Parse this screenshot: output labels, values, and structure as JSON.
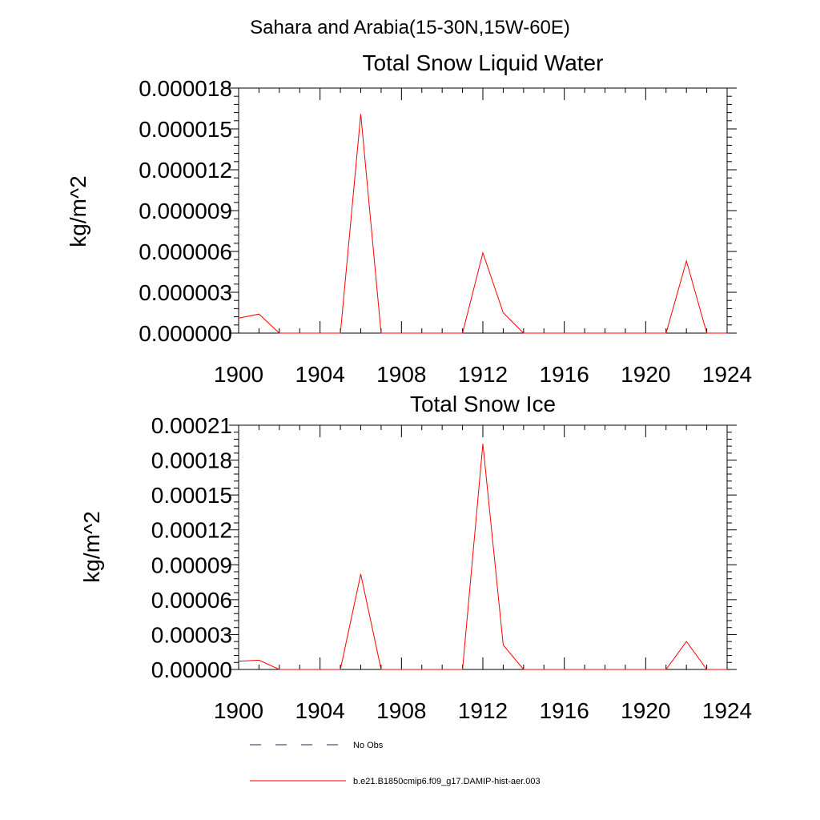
{
  "figure": {
    "title": "Sahara and Arabia(15-30N,15W-60E)"
  },
  "colors": {
    "obs_line": "#1c2a6b",
    "model_line": "#ff0000",
    "axes": "#000000"
  },
  "legend": {
    "position": "bottom-left",
    "items": [
      {
        "label": "No Obs",
        "style": "dashed",
        "color": "#1c2a6b"
      },
      {
        "label": "b.e21.B1850cmip6.f09_g17.DAMIP-hist-aer.003",
        "style": "solid",
        "color": "#ff0000"
      }
    ]
  },
  "chart_data": [
    {
      "type": "line",
      "title": "Total Snow Liquid Water",
      "xlabel": "",
      "ylabel": "kg/m^2",
      "xlim": [
        1900,
        1924
      ],
      "ylim": [
        0,
        1.8e-05
      ],
      "xticks": [
        1900,
        1904,
        1908,
        1912,
        1916,
        1920,
        1924
      ],
      "xtick_labels": [
        "1900",
        "1904",
        "1908",
        "1912",
        "1916",
        "1920",
        "1924"
      ],
      "yticks": [
        0,
        3e-06,
        6e-06,
        9e-06,
        1.2e-05,
        1.5e-05,
        1.8e-05
      ],
      "ytick_labels": [
        "0.000000",
        "0.000003",
        "0.000006",
        "0.000009",
        "0.000012",
        "0.000015",
        "0.000018"
      ],
      "grid": false,
      "x": [
        1900,
        1901,
        1902,
        1903,
        1904,
        1905,
        1906,
        1907,
        1908,
        1909,
        1910,
        1911,
        1912,
        1913,
        1914,
        1915,
        1916,
        1917,
        1918,
        1919,
        1920,
        1921,
        1922,
        1923,
        1924
      ],
      "series": [
        {
          "name": "b.e21.B1850cmip6.f09_g17.DAMIP-hist-aer.003",
          "color": "#ff0000",
          "values": [
            1.1e-06,
            1.4e-06,
            0,
            0,
            0,
            0,
            1.61e-05,
            0,
            0,
            0,
            0,
            0,
            5.9e-06,
            1.5e-06,
            0,
            0,
            0,
            0,
            0,
            0,
            0,
            0,
            5.3e-06,
            0,
            0
          ]
        }
      ]
    },
    {
      "type": "line",
      "title": "Total Snow Ice",
      "xlabel": "",
      "ylabel": "kg/m^2",
      "xlim": [
        1900,
        1924
      ],
      "ylim": [
        0,
        0.00021
      ],
      "xticks": [
        1900,
        1904,
        1908,
        1912,
        1916,
        1920,
        1924
      ],
      "xtick_labels": [
        "1900",
        "1904",
        "1908",
        "1912",
        "1916",
        "1920",
        "1924"
      ],
      "yticks": [
        0,
        3e-05,
        6e-05,
        9e-05,
        0.00012,
        0.00015,
        0.00018,
        0.00021
      ],
      "ytick_labels": [
        "0.00000",
        "0.00003",
        "0.00006",
        "0.00009",
        "0.00012",
        "0.00015",
        "0.00018",
        "0.00021"
      ],
      "grid": false,
      "x": [
        1900,
        1901,
        1902,
        1903,
        1904,
        1905,
        1906,
        1907,
        1908,
        1909,
        1910,
        1911,
        1912,
        1913,
        1914,
        1915,
        1916,
        1917,
        1918,
        1919,
        1920,
        1921,
        1922,
        1923,
        1924
      ],
      "series": [
        {
          "name": "b.e21.B1850cmip6.f09_g17.DAMIP-hist-aer.003",
          "color": "#ff0000",
          "values": [
            7e-06,
            8e-06,
            0,
            0,
            0,
            0,
            8.2e-05,
            0,
            0,
            0,
            0,
            0,
            0.000194,
            2.1e-05,
            0,
            0,
            0,
            0,
            0,
            0,
            0,
            0,
            2.4e-05,
            0,
            0
          ]
        }
      ]
    }
  ]
}
